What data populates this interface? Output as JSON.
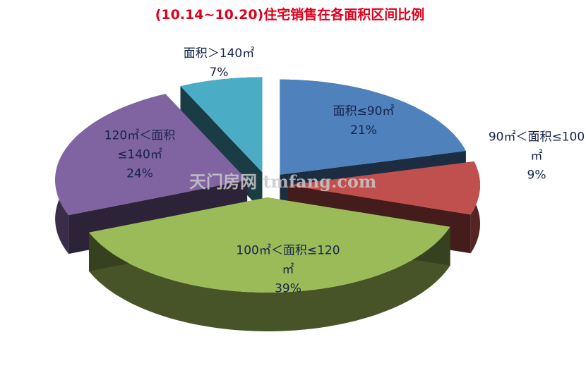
{
  "chart_data": {
    "type": "pie3d",
    "title": "(10.14~10.20)住宅销售在各面积区间比例",
    "categories": [
      "面积≤90㎡",
      "90㎡＜面积≤100㎡",
      "100㎡＜面积≤120㎡",
      "120㎡＜面积≤140㎡",
      "面积＞140㎡"
    ],
    "values": [
      21,
      9,
      39,
      24,
      7
    ],
    "value_labels": [
      "21%",
      "9%",
      "39%",
      "24%",
      "7%"
    ],
    "colors": [
      "#4f81bd",
      "#c0504d",
      "#9bbb59",
      "#8064a2",
      "#4bacc6"
    ],
    "watermark": "天门房网 tmfang.com"
  }
}
